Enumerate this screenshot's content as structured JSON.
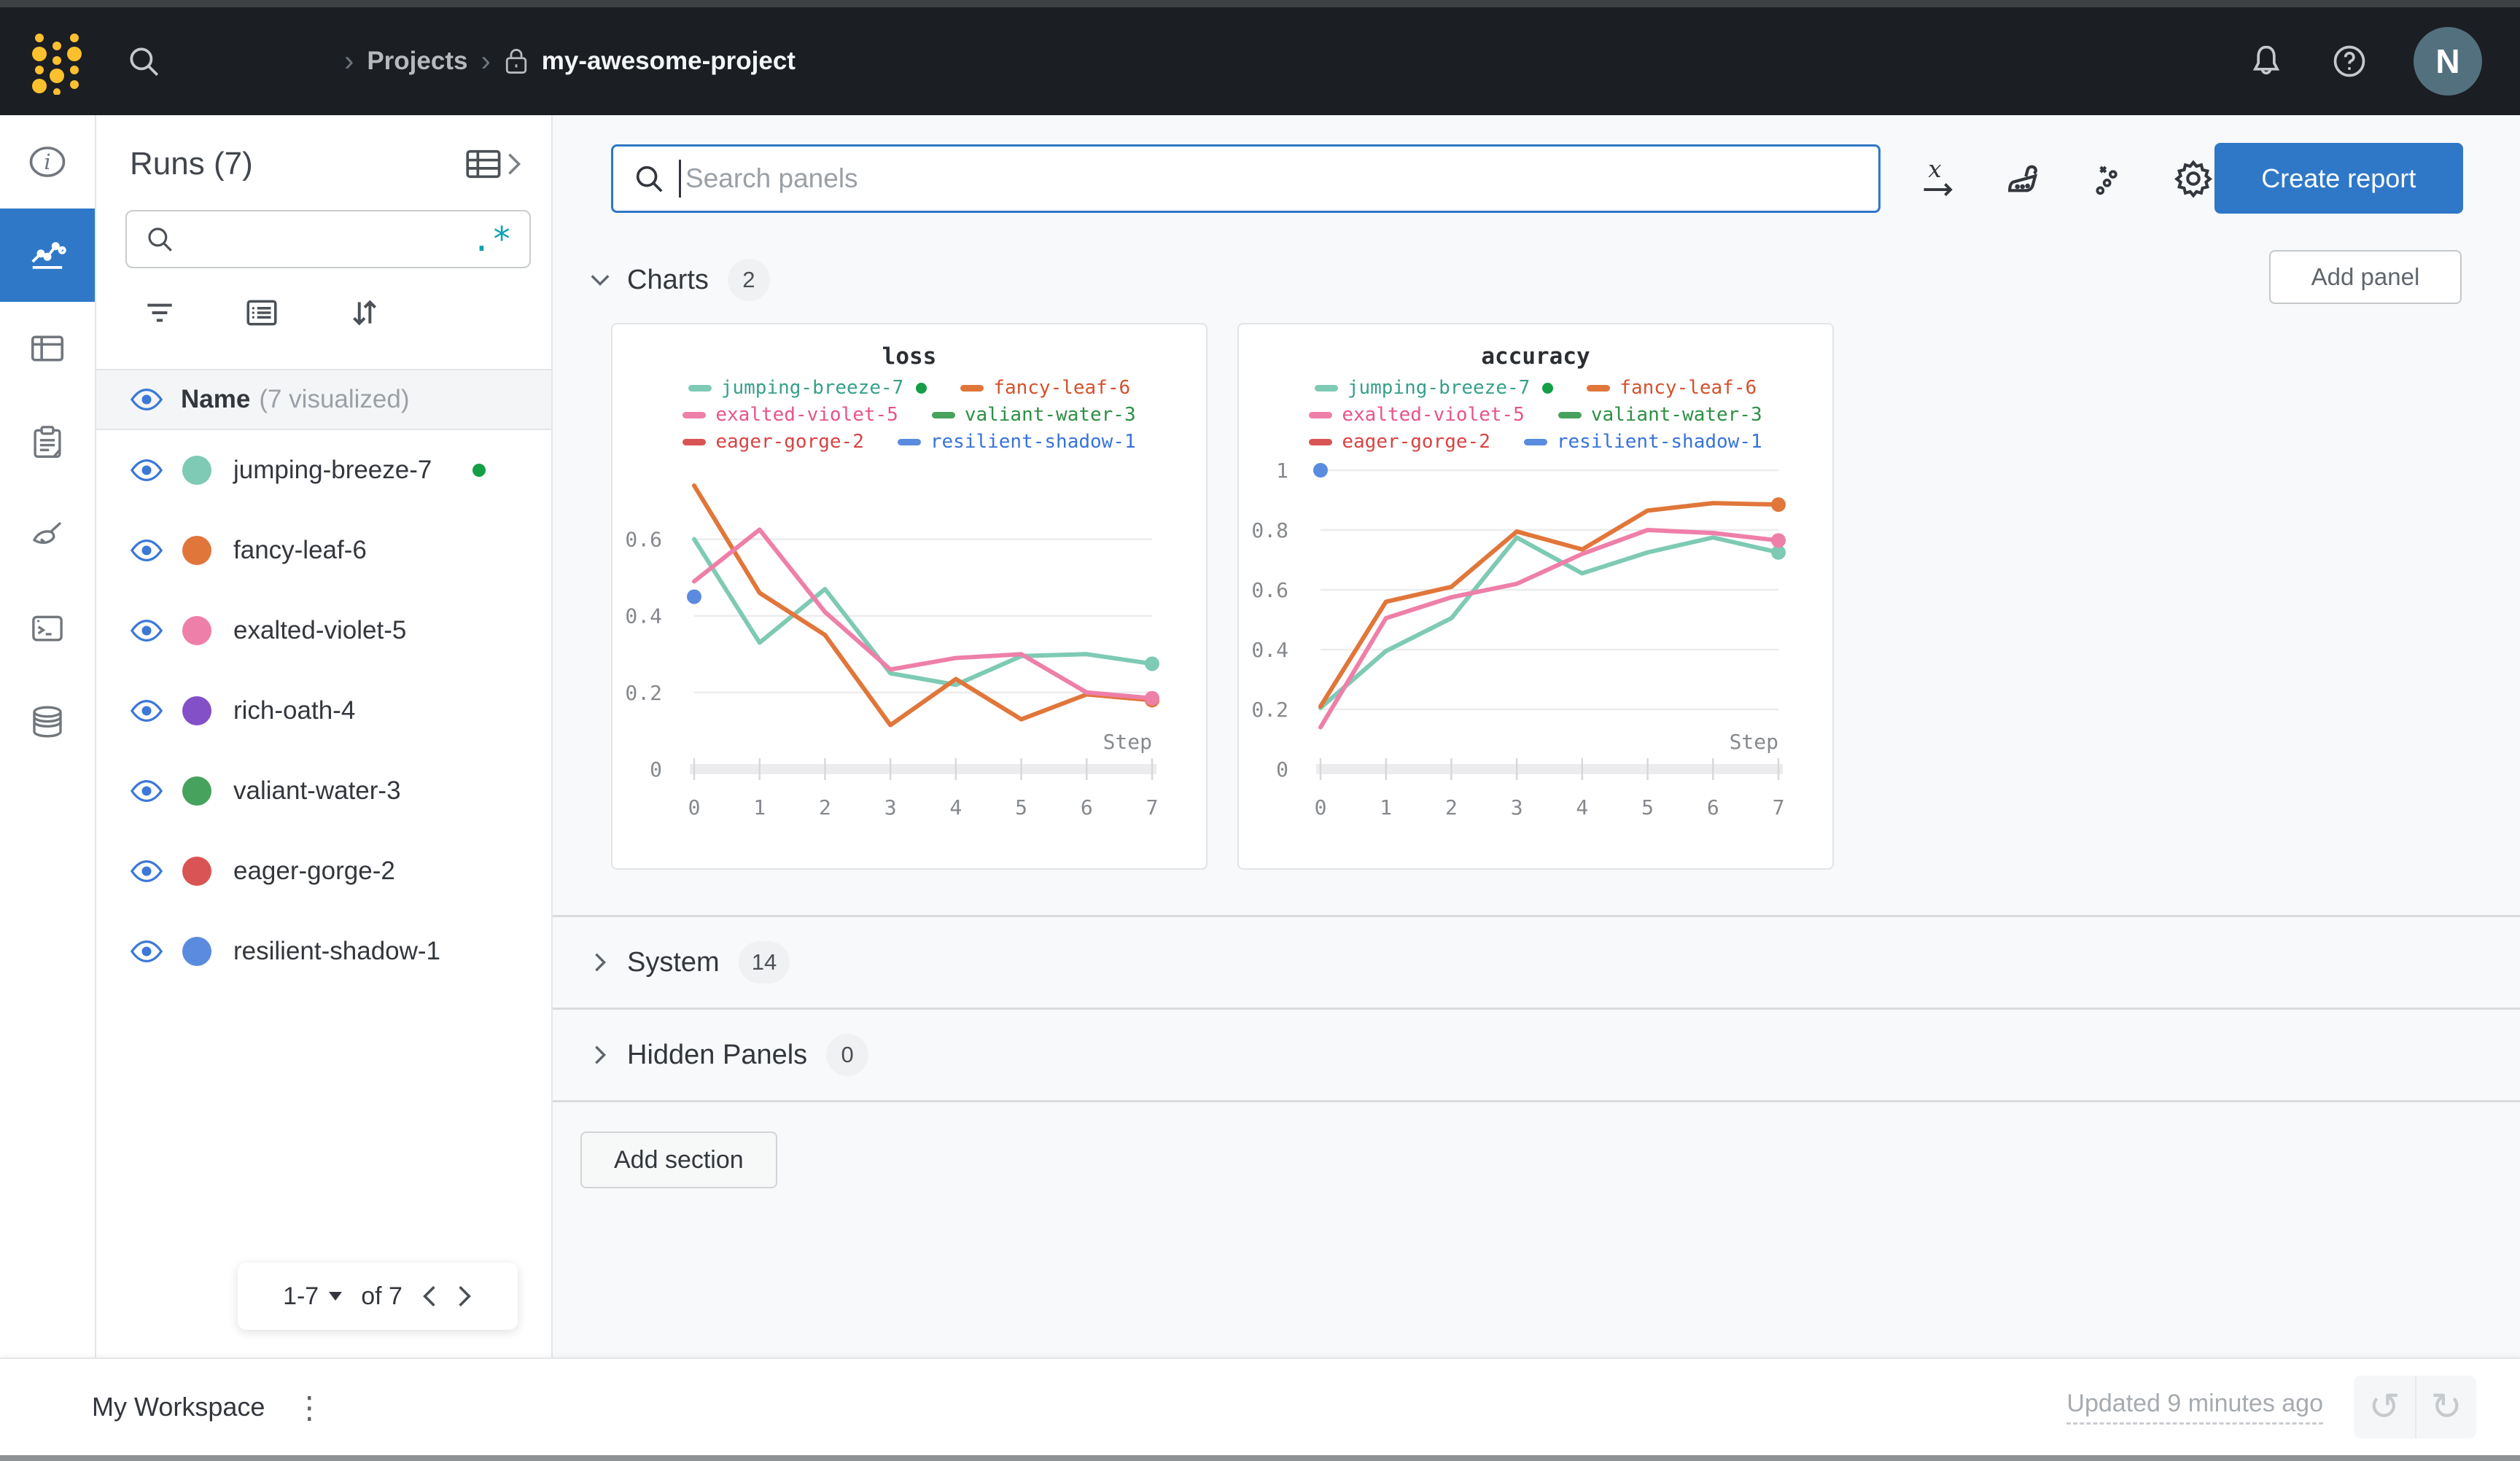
{
  "topnav": {
    "breadcrumb": {
      "separator": "›",
      "projects": "Projects",
      "project": "my-awesome-project"
    },
    "avatar_initial": "N",
    "icons": [
      "wandb-dots-logo",
      "search-icon",
      "lock-icon",
      "bell-icon",
      "help-icon",
      "avatar"
    ]
  },
  "icon_rail": {
    "items": [
      "overview-info",
      "workspace-charts",
      "runs-table",
      "reports-clipboard",
      "sweeps-broom",
      "logs-terminal",
      "artifacts-database"
    ],
    "selected": "workspace-charts"
  },
  "runs_panel": {
    "title": "Runs (7)",
    "search_value": "",
    "regex_icon": ".*",
    "header": {
      "name": "Name",
      "visualized": "(7 visualized)"
    },
    "runs": [
      {
        "name": "jumping-breeze-7",
        "color": "#7ecab4",
        "running": true
      },
      {
        "name": "fancy-leaf-6",
        "color": "#e1763a",
        "running": false
      },
      {
        "name": "exalted-violet-5",
        "color": "#ee7fa9",
        "running": false
      },
      {
        "name": "rich-oath-4",
        "color": "#8450c8",
        "running": false
      },
      {
        "name": "valiant-water-3",
        "color": "#46a25c",
        "running": false
      },
      {
        "name": "eager-gorge-2",
        "color": "#d95454",
        "running": false
      },
      {
        "name": "resilient-shadow-1",
        "color": "#5a8bdf",
        "running": false
      }
    ],
    "pagination": {
      "range": "1-7",
      "of": "of 7"
    }
  },
  "toolbar": {
    "search_placeholder": "Search panels",
    "create_report": "Create report",
    "icons": [
      "x-axis-icon",
      "panel-sweep-icon",
      "outliers-icon",
      "gear-icon"
    ]
  },
  "sections": {
    "charts": {
      "label": "Charts",
      "count": "2"
    },
    "system": {
      "label": "System",
      "count": "14"
    },
    "hidden_panels": {
      "label": "Hidden Panels",
      "count": "0"
    },
    "add_panel": "Add panel",
    "add_section": "Add section"
  },
  "chart_data": [
    {
      "type": "line",
      "title": "loss",
      "xlabel": "Step",
      "x": [
        0,
        1,
        2,
        3,
        4,
        5,
        6,
        7
      ],
      "yticks": [
        0,
        0.2,
        0.4,
        0.6
      ],
      "ylim": [
        0,
        0.78
      ],
      "grid": true,
      "legend_position": "top",
      "series": [
        {
          "name": "jumping-breeze-7",
          "color": "#7ecab4",
          "text_color": "#36a08b",
          "values": [
            0.6,
            0.33,
            0.47,
            0.25,
            0.22,
            0.295,
            0.3,
            0.275
          ],
          "end_dot": true,
          "running": true
        },
        {
          "name": "fancy-leaf-6",
          "color": "#e1763a",
          "text_color": "#d4512b",
          "values": [
            0.74,
            0.46,
            0.35,
            0.115,
            0.235,
            0.13,
            0.195,
            0.18
          ],
          "end_dot": true
        },
        {
          "name": "exalted-violet-5",
          "color": "#ee7fa9",
          "text_color": "#e8538a",
          "values": [
            0.49,
            0.625,
            0.41,
            0.26,
            0.29,
            0.3,
            0.2,
            0.185
          ],
          "end_dot": true
        },
        {
          "name": "valiant-water-3",
          "color": "#46a25c",
          "text_color": "#2e8f46",
          "values": []
        },
        {
          "name": "eager-gorge-2",
          "color": "#d95454",
          "text_color": "#d84343",
          "values": []
        },
        {
          "name": "resilient-shadow-1",
          "color": "#5a8bdf",
          "text_color": "#3873d9",
          "values": [
            0.45
          ],
          "point_only": true
        }
      ]
    },
    {
      "type": "line",
      "title": "accuracy",
      "xlabel": "Step",
      "x": [
        0,
        1,
        2,
        3,
        4,
        5,
        6,
        7
      ],
      "yticks": [
        0,
        0.2,
        0.4,
        0.6,
        0.8,
        1
      ],
      "ylim": [
        0,
        1.0
      ],
      "grid": true,
      "legend_position": "top",
      "series": [
        {
          "name": "jumping-breeze-7",
          "color": "#7ecab4",
          "text_color": "#36a08b",
          "values": [
            0.205,
            0.395,
            0.505,
            0.775,
            0.655,
            0.725,
            0.775,
            0.725
          ],
          "end_dot": true,
          "running": true
        },
        {
          "name": "fancy-leaf-6",
          "color": "#e1763a",
          "text_color": "#d4512b",
          "values": [
            0.21,
            0.56,
            0.61,
            0.795,
            0.735,
            0.865,
            0.89,
            0.885
          ],
          "end_dot": true
        },
        {
          "name": "exalted-violet-5",
          "color": "#ee7fa9",
          "text_color": "#e8538a",
          "values": [
            0.14,
            0.505,
            0.575,
            0.62,
            0.72,
            0.8,
            0.79,
            0.765
          ],
          "end_dot": true
        },
        {
          "name": "valiant-water-3",
          "color": "#46a25c",
          "text_color": "#2e8f46",
          "values": []
        },
        {
          "name": "eager-gorge-2",
          "color": "#d95454",
          "text_color": "#d84343",
          "values": []
        },
        {
          "name": "resilient-shadow-1",
          "color": "#5a8bdf",
          "text_color": "#3873d9",
          "values": [
            1.0
          ],
          "point_only": true
        }
      ]
    }
  ],
  "bottom_bar": {
    "workspace": "My Workspace",
    "updated": "Updated 9 minutes ago",
    "icons": [
      "kebab-icon",
      "undo-icon",
      "redo-icon"
    ]
  },
  "colors": {
    "accent_blue": "#2e78c7",
    "nav_bg": "#1b1e22",
    "logo_gold": "#fcc02f",
    "running_green": "#149e46",
    "eye_blue": "#3b78d8",
    "regex_teal": "#0ba3b2"
  }
}
